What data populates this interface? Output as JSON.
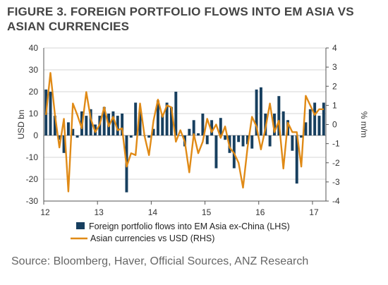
{
  "title": "FIGURE 3. FOREIGN PORTFOLIO FLOWS INTO EM ASIA VS ASIAN CURRENCIES",
  "source": "Source: Bloomberg, Haver, Official Sources, ANZ Research",
  "colors": {
    "bar": "#173f5f",
    "line": "#e08a16",
    "grid": "#d4d4d4",
    "axis": "#555555"
  },
  "chart_data": {
    "type": "bar",
    "title": "FIGURE 3. FOREIGN PORTFOLIO FLOWS INTO EM ASIA VS ASIAN CURRENCIES",
    "ylabel_left": "USD bn",
    "ylabel_right": "% m/m",
    "ylim_left": [
      -30,
      40
    ],
    "ylim_right": [
      -4,
      4
    ],
    "yticks_left": [
      "40",
      "30",
      "20",
      "10",
      "0",
      "-10",
      "-20",
      "-30"
    ],
    "yticks_right": [
      "4",
      "3",
      "2",
      "1",
      "0",
      "-1",
      "-2",
      "-3",
      "-4"
    ],
    "x_ticks": [
      "12",
      "13",
      "14",
      "15",
      "16",
      "17"
    ],
    "grid": "horizontal",
    "legend_position": "bottom",
    "x_start": "2012-01",
    "x_end": "2017-03",
    "series": [
      {
        "name": "Foreign portfolio flows into EM Asia ex-China (LHS)",
        "type": "bar",
        "axis": "left",
        "values": [
          21,
          20,
          9,
          -2,
          -8,
          6,
          3,
          -1,
          11,
          9,
          12,
          5,
          9,
          13,
          10,
          11,
          9,
          10,
          -26,
          -1,
          15,
          11,
          0,
          -1,
          3,
          16,
          10,
          15,
          13,
          20,
          0,
          -5,
          3,
          7,
          1,
          10,
          -4,
          7,
          -15,
          8,
          -2,
          -8,
          -15,
          -3,
          -5,
          -4,
          -6,
          21,
          22,
          10,
          -5,
          10,
          18,
          11,
          7,
          -7,
          -22,
          -1,
          6,
          12,
          15,
          9,
          15
        ]
      },
      {
        "name": "Asian currencies vs USD (RHS)",
        "type": "line",
        "axis": "right",
        "values": [
          0.5,
          2.7,
          0.5,
          -1.2,
          0.3,
          -3.5,
          1.1,
          0.5,
          -0.2,
          1.7,
          0.3,
          -0.4,
          0.0,
          0.9,
          -0.1,
          0.4,
          -0.3,
          -0.2,
          -2.2,
          -1.5,
          -1.6,
          1.1,
          -0.6,
          -1.6,
          0.2,
          1.3,
          0.4,
          1.0,
          0.9,
          -0.9,
          -0.3,
          -0.9,
          -2.5,
          -0.5,
          -1.5,
          -0.9,
          0.3,
          -0.4,
          0.0,
          -0.7,
          -0.1,
          -1.2,
          -1.5,
          -2.0,
          -3.3,
          -1.2,
          0.4,
          -0.1,
          -1.3,
          -0.2,
          1.1,
          -0.4,
          0.2,
          -2.3,
          0.1,
          -0.4,
          -0.4,
          -2.2,
          1.5,
          1.0,
          0.5,
          0.8,
          0.8
        ]
      }
    ]
  }
}
